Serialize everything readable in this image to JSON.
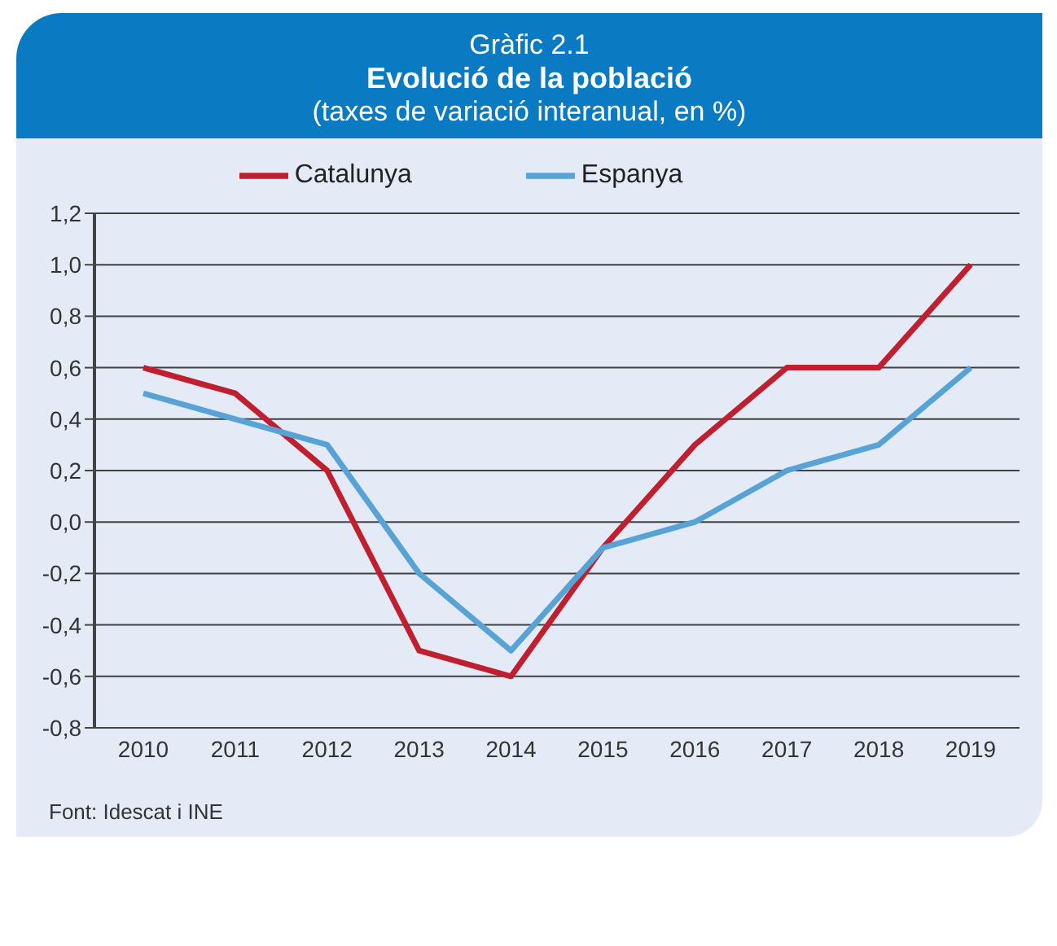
{
  "chart_data": {
    "type": "line",
    "title": "Evolució de la població",
    "subtitle": "(taxes de variació interanual, en %)",
    "annotations": [
      "Gràfic 2.1",
      "Font: Idescat i INE"
    ],
    "categories": [
      "2010",
      "2011",
      "2012",
      "2013",
      "2014",
      "2015",
      "2016",
      "2017",
      "2018",
      "2019"
    ],
    "series": [
      {
        "name": "Catalunya",
        "color": "#c01f2f",
        "values": [
          0.6,
          0.5,
          0.2,
          -0.5,
          -0.6,
          -0.1,
          0.3,
          0.6,
          0.6,
          1.0
        ]
      },
      {
        "name": "Espanya",
        "color": "#58a3d6",
        "values": [
          0.5,
          0.4,
          0.3,
          -0.2,
          -0.5,
          -0.1,
          0.0,
          0.2,
          0.3,
          0.6
        ]
      }
    ],
    "ylim": [
      -0.8,
      1.2
    ],
    "yticks": [
      {
        "value": -0.8,
        "label": "-0,8"
      },
      {
        "value": -0.6,
        "label": "-0,6"
      },
      {
        "value": -0.4,
        "label": "-0,4"
      },
      {
        "value": -0.2,
        "label": "-0,2"
      },
      {
        "value": 0,
        "label": "0,0"
      },
      {
        "value": 0.2,
        "label": "0,2"
      },
      {
        "value": 0.4,
        "label": "0,4"
      },
      {
        "value": 0.6,
        "label": "0,6"
      },
      {
        "value": 0.8,
        "label": "0,8"
      },
      {
        "value": 1.0,
        "label": "1,0"
      },
      {
        "value": 1.2,
        "label": "1,2"
      }
    ],
    "grid": "y",
    "legend": "top",
    "marker": "none",
    "line_style": "solid"
  }
}
